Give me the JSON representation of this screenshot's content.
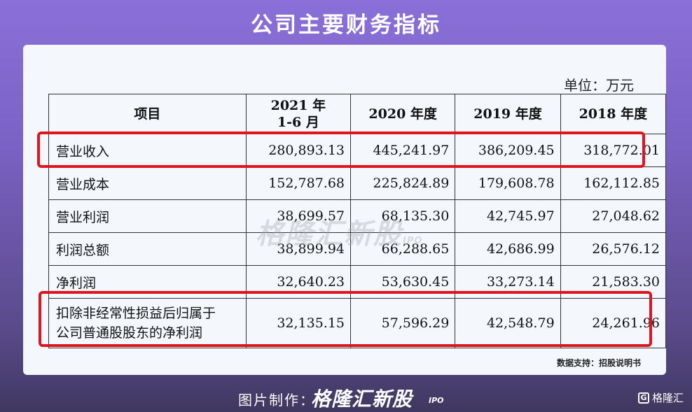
{
  "title": "公司主要财务指标",
  "unit": "单位：万元",
  "table": {
    "headers": [
      "项目",
      "2021 年\n1-6 月",
      "2020 年度",
      "2019 年度",
      "2018 年度"
    ],
    "rows": [
      {
        "label": "营业收入",
        "values": [
          "280,893.13",
          "445,241.97",
          "386,209.45",
          "318,772.01"
        ],
        "highlighted": true
      },
      {
        "label": "营业成本",
        "values": [
          "152,787.68",
          "225,824.89",
          "179,608.78",
          "162,112.85"
        ]
      },
      {
        "label": "营业利润",
        "values": [
          "38,699.57",
          "68,135.30",
          "42,745.97",
          "27,048.62"
        ]
      },
      {
        "label": "利润总额",
        "values": [
          "38,899.94",
          "66,288.65",
          "42,686.99",
          "26,576.12"
        ]
      },
      {
        "label": "净利润",
        "values": [
          "32,640.23",
          "53,630.45",
          "33,273.14",
          "21,583.30"
        ]
      },
      {
        "label": "扣除非经常性损益后归属于\n公司普通股股东的净利润",
        "values": [
          "32,135.15",
          "57,596.29",
          "42,548.79",
          "24,261.96"
        ],
        "highlighted": true
      }
    ]
  },
  "watermark": {
    "brand": "格隆汇新股",
    "suffix": "IPO"
  },
  "source": "数据支持：招股说明书",
  "footer": {
    "credit_label": "图片制作：",
    "brand": "格隆汇新股",
    "brand_suffix": "IPO",
    "corner_logo_text": "格隆汇",
    "corner_logo_icon": "G"
  },
  "colors": {
    "highlight": "#e0141e",
    "accent_bg": "#7a62c4"
  }
}
